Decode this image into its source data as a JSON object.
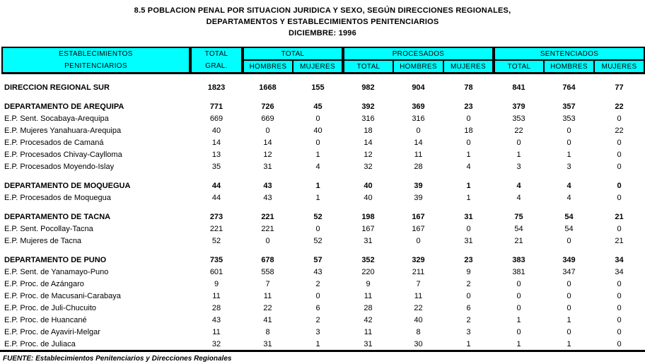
{
  "title": {
    "line1": "8.5  POBLACION PENAL POR SITUACION JURIDICA Y SEXO, SEGÚN DIRECCIONES REGIONALES,",
    "line2": "DEPARTAMENTOS Y ESTABLECIMIENTOS PENITENCIARIOS",
    "line3": "DICIEMBRE: 1996"
  },
  "colors": {
    "header_bg": "#00FFFF",
    "border": "#000000",
    "text": "#000000",
    "background": "#FFFFFF"
  },
  "table": {
    "header": {
      "col_establecimientos_line1": "ESTABLECIMIENTOS",
      "col_establecimientos_line2": "PENITENCIARIOS",
      "col_total_gral_line1": "TOTAL",
      "col_total_gral_line2": "GRAL.",
      "group_total": "TOTAL",
      "group_procesados": "PROCESADOS",
      "group_sentenciados": "SENTENCIADOS",
      "sub_headers": [
        "HOMBRES",
        "MUJERES",
        "TOTAL",
        "HOMBRES",
        "MUJERES",
        "TOTAL",
        "HOMBRES",
        "MUJERES"
      ]
    },
    "rows": [
      {
        "type": "spacer",
        "label": "",
        "values": []
      },
      {
        "type": "regional",
        "label": "DIRECCION REGIONAL SUR",
        "values": [
          1823,
          1668,
          155,
          982,
          904,
          78,
          841,
          764,
          77
        ]
      },
      {
        "type": "spacer",
        "label": "",
        "values": []
      },
      {
        "type": "department",
        "label": "DEPARTAMENTO DE AREQUIPA",
        "values": [
          771,
          726,
          45,
          392,
          369,
          23,
          379,
          357,
          22
        ]
      },
      {
        "type": "item",
        "label": "E.P. Sent. Socabaya-Arequipa",
        "values": [
          669,
          669,
          0,
          316,
          316,
          0,
          353,
          353,
          0
        ]
      },
      {
        "type": "item",
        "label": "E.P. Mujeres Yanahuara-Arequipa",
        "values": [
          40,
          0,
          40,
          18,
          0,
          18,
          22,
          0,
          22
        ]
      },
      {
        "type": "item",
        "label": "E.P. Procesados de Camaná",
        "values": [
          14,
          14,
          0,
          14,
          14,
          0,
          0,
          0,
          0
        ]
      },
      {
        "type": "item",
        "label": "E.P. Procesados  Chivay-Caylloma",
        "values": [
          13,
          12,
          1,
          12,
          11,
          1,
          1,
          1,
          0
        ]
      },
      {
        "type": "item",
        "label": "E.P. Procesados Moyendo-Islay",
        "values": [
          35,
          31,
          4,
          32,
          28,
          4,
          3,
          3,
          0
        ]
      },
      {
        "type": "spacer",
        "label": "",
        "values": []
      },
      {
        "type": "department",
        "label": "DEPARTAMENTO DE MOQUEGUA",
        "values": [
          44,
          43,
          1,
          40,
          39,
          1,
          4,
          4,
          0
        ]
      },
      {
        "type": "item",
        "label": "E.P. Procesados de Moquegua",
        "values": [
          44,
          43,
          1,
          40,
          39,
          1,
          4,
          4,
          0
        ]
      },
      {
        "type": "spacer",
        "label": "",
        "values": []
      },
      {
        "type": "department",
        "label": "DEPARTAMENTO DE TACNA",
        "values": [
          273,
          221,
          52,
          198,
          167,
          31,
          75,
          54,
          21
        ]
      },
      {
        "type": "item",
        "label": "E.P. Sent. Pocollay-Tacna",
        "values": [
          221,
          221,
          0,
          167,
          167,
          0,
          54,
          54,
          0
        ]
      },
      {
        "type": "item",
        "label": "E.P. Mujeres de Tacna",
        "values": [
          52,
          0,
          52,
          31,
          0,
          31,
          21,
          0,
          21
        ]
      },
      {
        "type": "spacer",
        "label": "",
        "values": []
      },
      {
        "type": "department",
        "label": "DEPARTAMENTO DE PUNO",
        "values": [
          735,
          678,
          57,
          352,
          329,
          23,
          383,
          349,
          34
        ]
      },
      {
        "type": "item",
        "label": "E.P. Sent. de Yanamayo-Puno",
        "values": [
          601,
          558,
          43,
          220,
          211,
          9,
          381,
          347,
          34
        ]
      },
      {
        "type": "item",
        "label": "E.P. Proc. de Azángaro",
        "values": [
          9,
          7,
          2,
          9,
          7,
          2,
          0,
          0,
          0
        ]
      },
      {
        "type": "item",
        "label": "E.P. Proc. de Macusani-Carabaya",
        "values": [
          11,
          11,
          0,
          11,
          11,
          0,
          0,
          0,
          0
        ]
      },
      {
        "type": "item",
        "label": "E.P. Proc. de Juli-Chucuito",
        "values": [
          28,
          22,
          6,
          28,
          22,
          6,
          0,
          0,
          0
        ]
      },
      {
        "type": "item",
        "label": "E.P. Proc. de Huancané",
        "values": [
          43,
          41,
          2,
          42,
          40,
          2,
          1,
          1,
          0
        ]
      },
      {
        "type": "item",
        "label": "E.P. Proc. de Ayaviri-Melgar",
        "values": [
          11,
          8,
          3,
          11,
          8,
          3,
          0,
          0,
          0
        ]
      },
      {
        "type": "item",
        "label": "E.P. Proc. de Juliaca",
        "values": [
          32,
          31,
          1,
          31,
          30,
          1,
          1,
          1,
          0
        ]
      }
    ]
  },
  "footer": {
    "fuente": "FUENTE: Establecimientos Penitenciarios y Direcciones Regionales"
  }
}
